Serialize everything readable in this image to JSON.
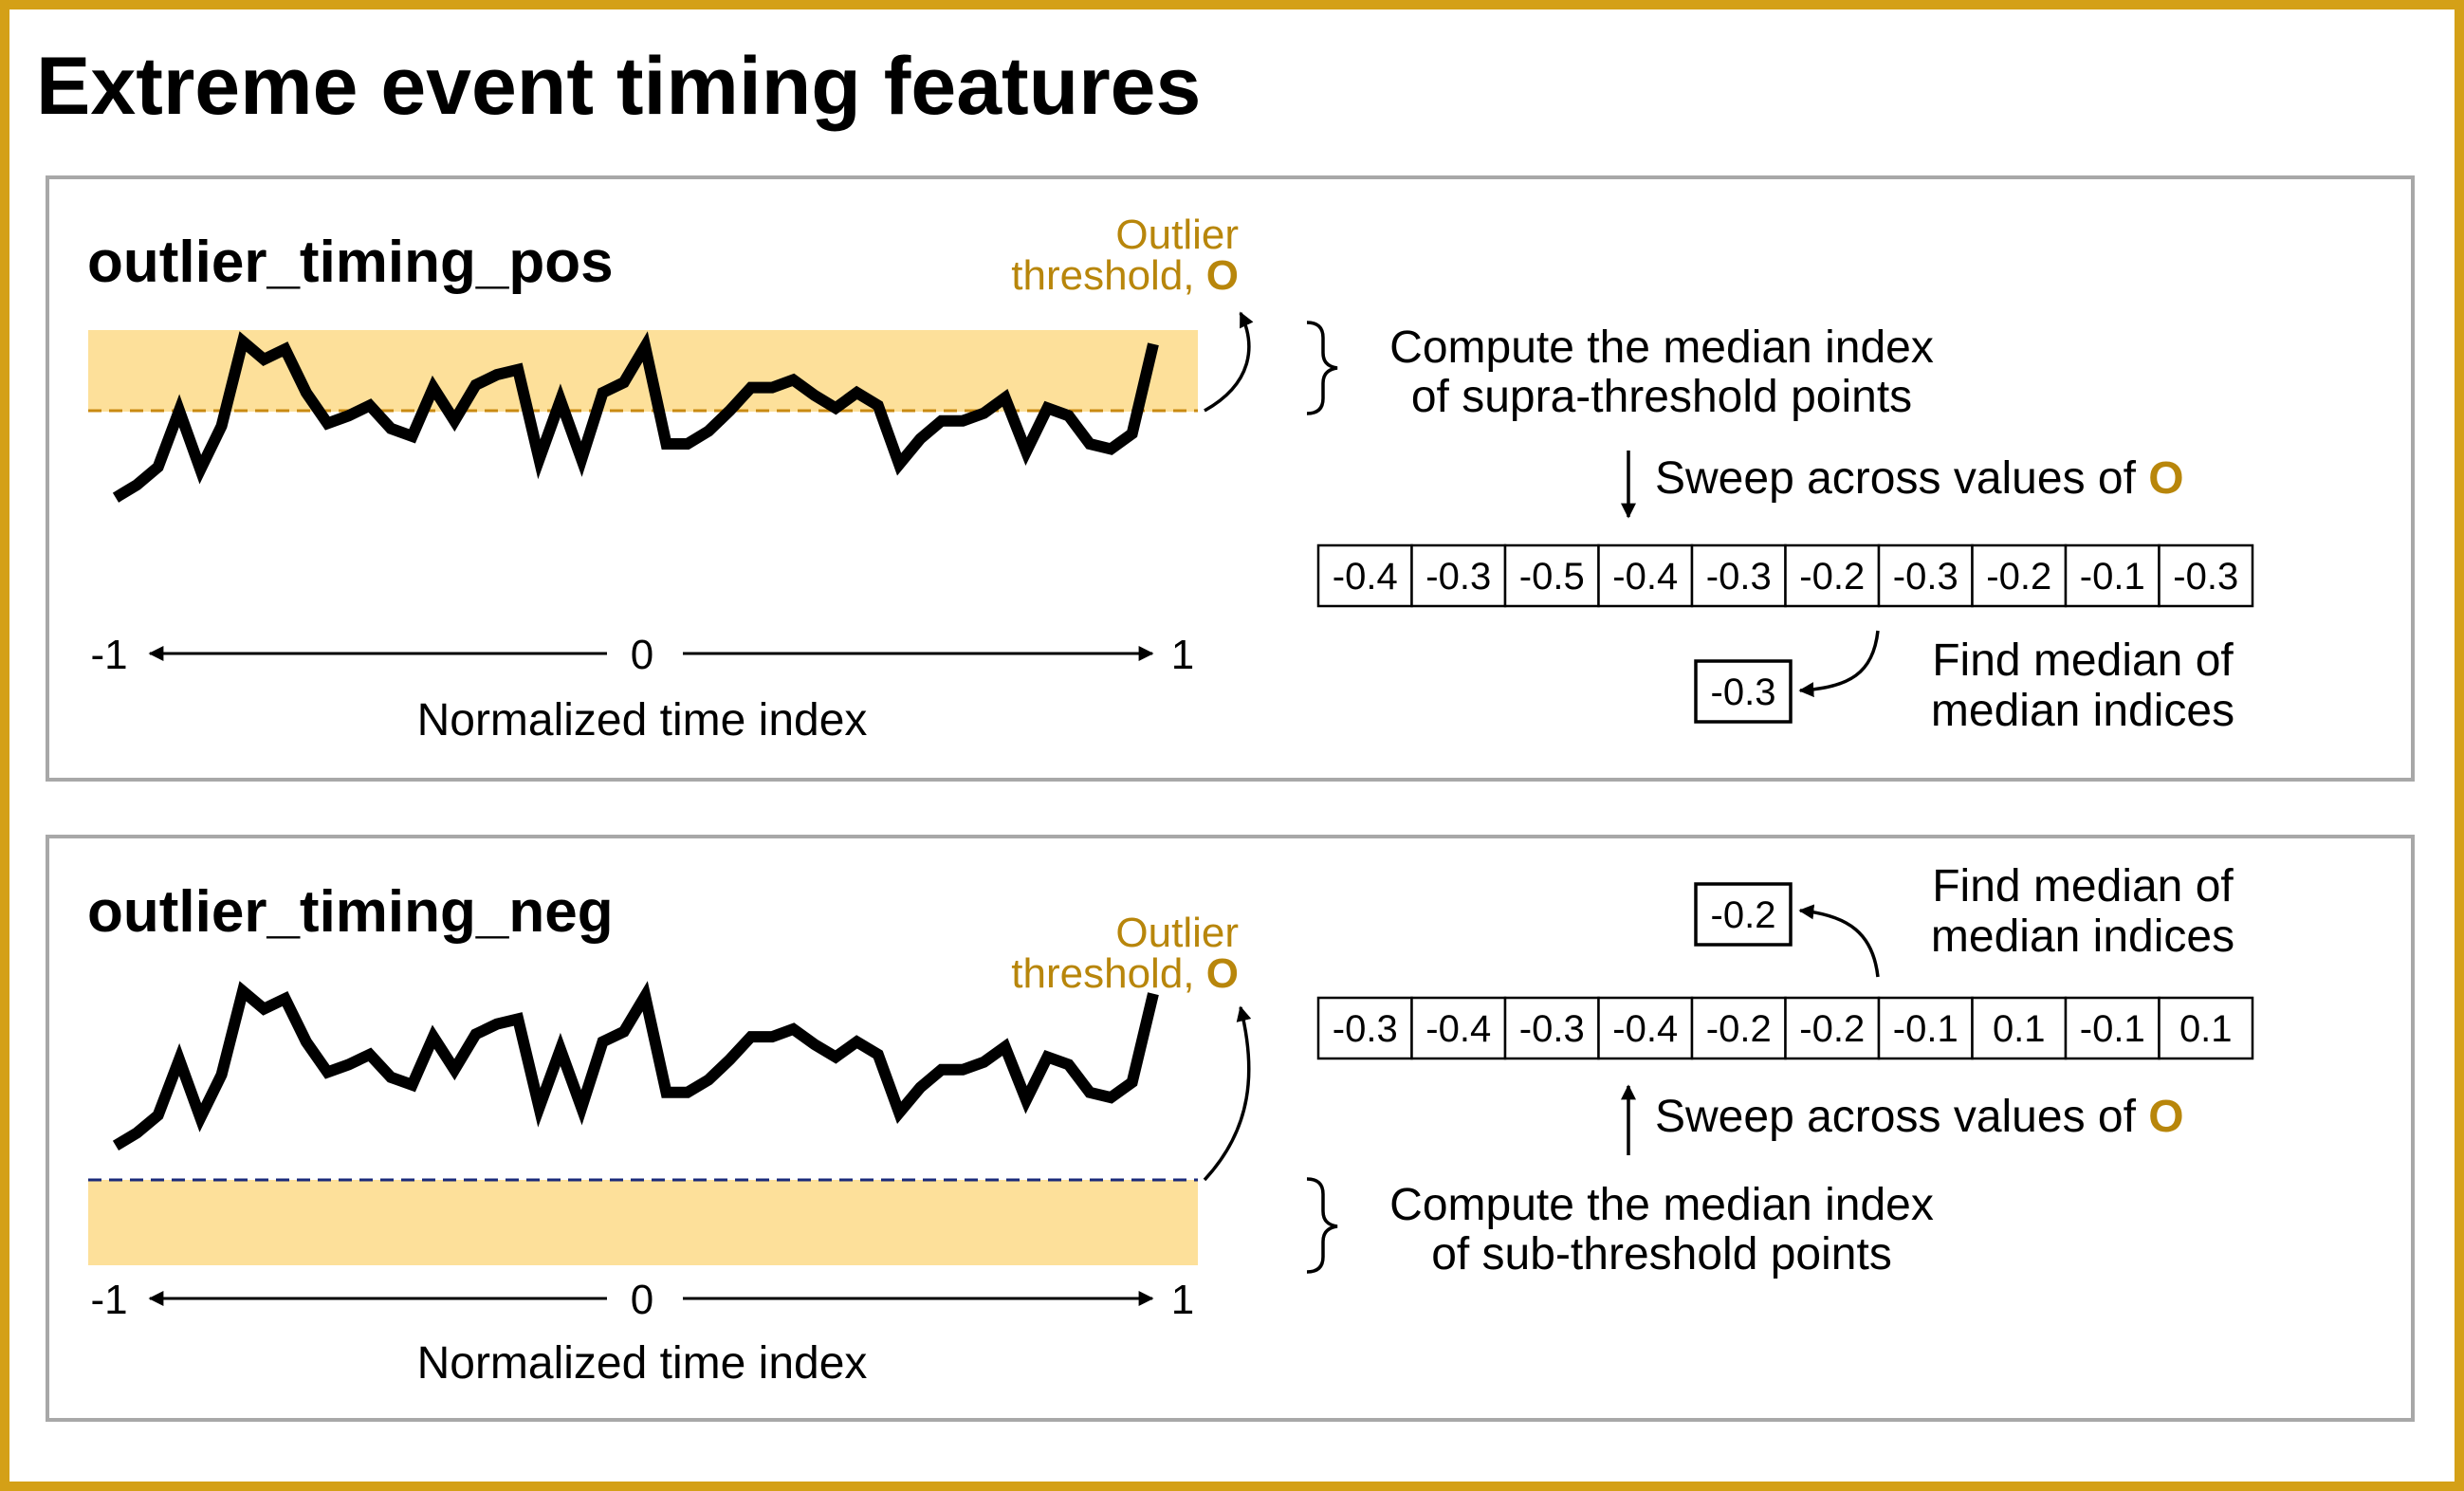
{
  "title": "Extreme event timing features",
  "colors": {
    "frame": "#d4a017",
    "panel_border": "#a8a8a8",
    "band": "#fde09a",
    "pos_threshold_line": "#c98a12",
    "neg_threshold_line": "#1a2a7a",
    "accent": "#b8860b",
    "series": "#000000"
  },
  "threshold_symbol": "O",
  "panels": [
    {
      "id": "pos",
      "title": "outlier_timing_pos",
      "threshold_label_line1": "Outlier",
      "threshold_label_line2": "threshold, ",
      "axis": {
        "left": "-1",
        "mid": "0",
        "right": "1",
        "label": "Normalized time index"
      },
      "step1_line1": "Compute the median index",
      "step1_line2": "of supra-threshold points",
      "sweep_label": "Sweep across values of ",
      "medians": [
        "-0.4",
        "-0.3",
        "-0.5",
        "-0.4",
        "-0.3",
        "-0.2",
        "-0.3",
        "-0.2",
        "-0.1",
        "-0.3"
      ],
      "result": "-0.3",
      "final_line1": "Find median of",
      "final_line2": "median indices"
    },
    {
      "id": "neg",
      "title": "outlier_timing_neg",
      "threshold_label_line1": "Outlier",
      "threshold_label_line2": "threshold, ",
      "axis": {
        "left": "-1",
        "mid": "0",
        "right": "1",
        "label": "Normalized time index"
      },
      "step1_line1": "Compute the median index",
      "step1_line2": "of sub-threshold points",
      "sweep_label": "Sweep across values of ",
      "medians": [
        "-0.3",
        "-0.4",
        "-0.3",
        "-0.4",
        "-0.2",
        "-0.2",
        "-0.1",
        "0.1",
        "-0.1",
        "0.1"
      ],
      "result": "-0.2",
      "final_line1": "Find median of",
      "final_line2": "median indices"
    }
  ],
  "series_values": [
    0.39,
    0.44,
    0.51,
    0.73,
    0.5,
    0.67,
    1.0,
    0.93,
    0.97,
    0.8,
    0.68,
    0.71,
    0.75,
    0.66,
    0.63,
    0.82,
    0.69,
    0.83,
    0.87,
    0.89,
    0.54,
    0.77,
    0.54,
    0.8,
    0.84,
    0.98,
    0.6,
    0.6,
    0.65,
    0.73,
    0.82,
    0.82,
    0.85,
    0.79,
    0.74,
    0.8,
    0.75,
    0.52,
    0.62,
    0.69,
    0.69,
    0.72,
    0.78,
    0.57,
    0.74,
    0.71,
    0.6,
    0.58,
    0.64,
    0.99
  ]
}
